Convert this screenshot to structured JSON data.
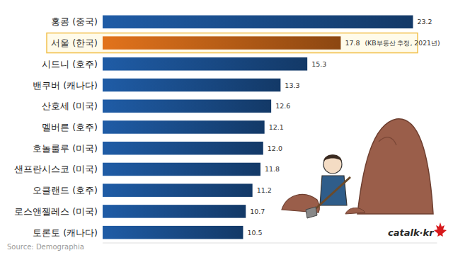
{
  "chart_data": {
    "type": "bar",
    "orientation": "horizontal",
    "categories": [
      "홍콩 (중국)",
      "서울 (한국)",
      "시드니 (호주)",
      "밴쿠버 (캐나다)",
      "산호세 (미국)",
      "멜버른 (호주)",
      "호놀룰루 (미국)",
      "샌프란시스코 (미국)",
      "오클랜드 (호주)",
      "로스앤젤레스 (미국)",
      "토론토 (캐나다)"
    ],
    "values": [
      23.2,
      17.8,
      15.3,
      13.3,
      12.6,
      12.1,
      12.0,
      11.8,
      11.2,
      10.7,
      10.5
    ],
    "value_labels": [
      "23.2",
      "17.8",
      "15.3",
      "13.3",
      "12.6",
      "12.1",
      "12.0",
      "11.8",
      "11.2",
      "10.7",
      "10.5"
    ],
    "colors": [
      "#1f5ca6",
      "#e2731c",
      "#1f5ca6",
      "#1f5ca6",
      "#1f5ca6",
      "#1f5ca6",
      "#1f5ca6",
      "#1f5ca6",
      "#1f5ca6",
      "#1f5ca6",
      "#1f5ca6"
    ],
    "xlim": [
      0,
      25
    ],
    "grid": false,
    "data_labels": true,
    "tick_labels": "y",
    "annotations": [
      "(KB부동산 추정, 2021년)",
      "catalk·kr"
    ],
    "source": "Source: Demographia"
  }
}
